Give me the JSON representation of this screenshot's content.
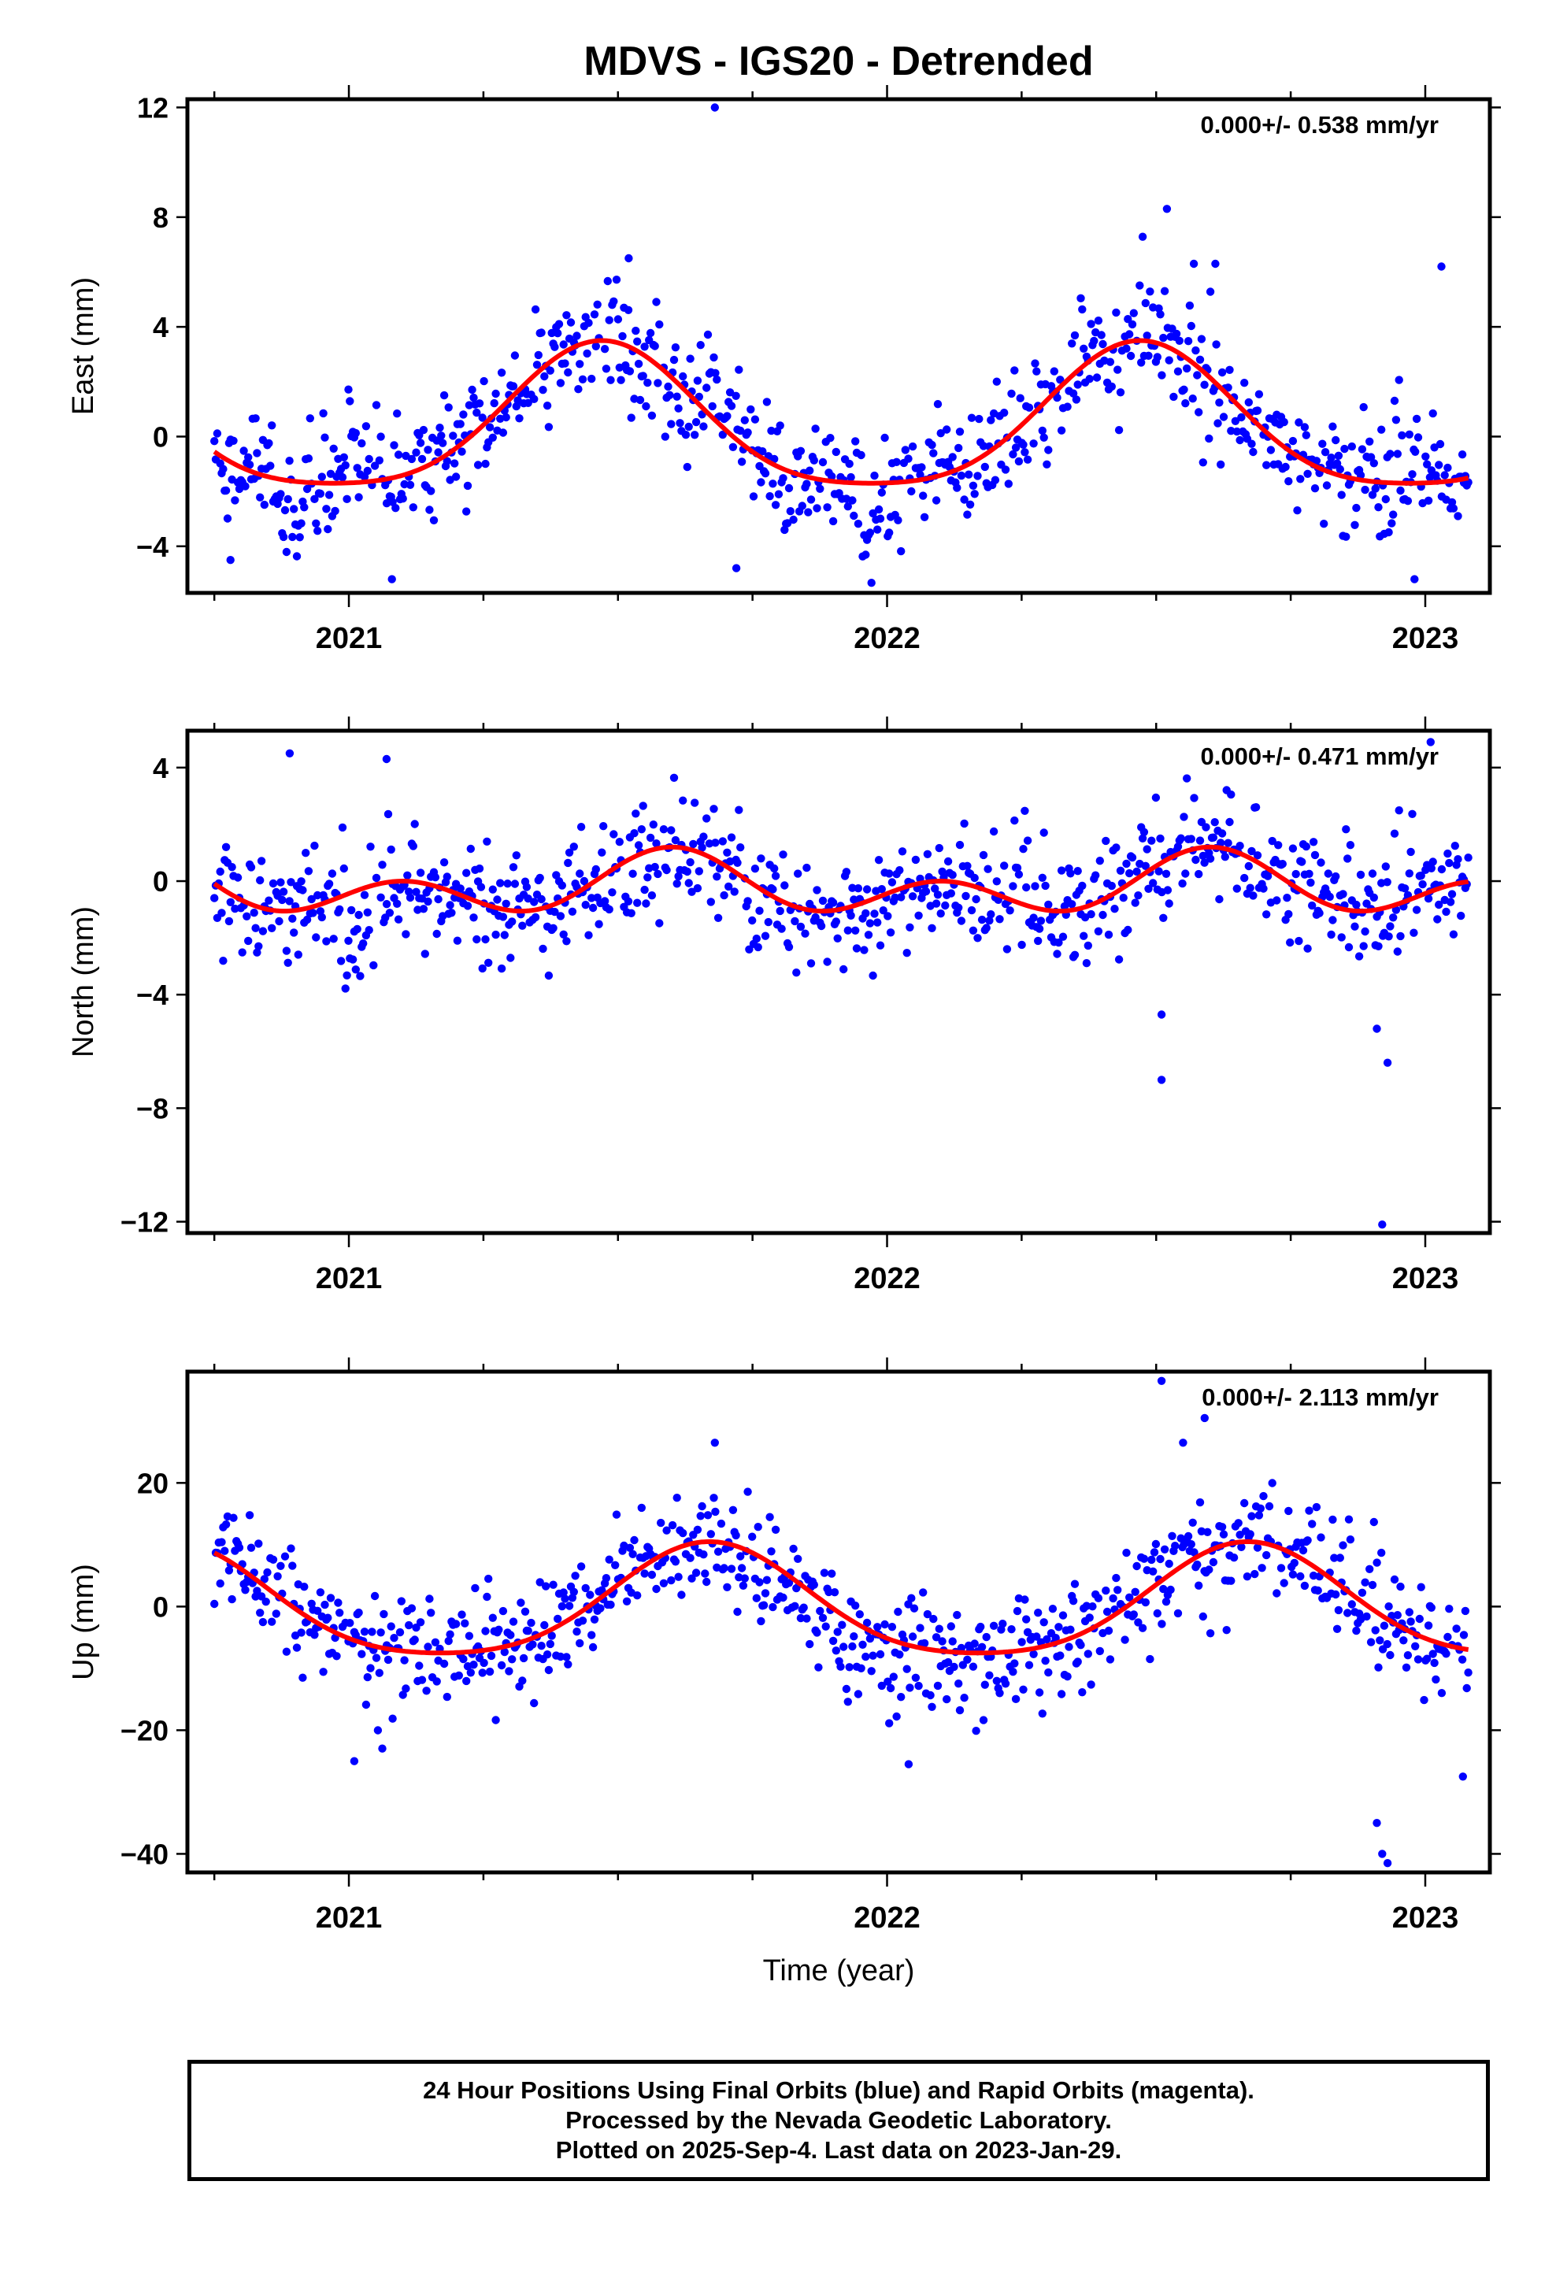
{
  "title": "MDVS - IGS20 - Detrended",
  "xlabel": "Time (year)",
  "x_ticks": [
    "2021",
    "2022",
    "2023"
  ],
  "colors": {
    "points": "#0000ff",
    "fit": "#ff0000",
    "frame": "#000000"
  },
  "caption": {
    "line1": "24 Hour Positions Using Final Orbits (blue) and Rapid Orbits (magenta).",
    "line2": "Processed by the Nevada Geodetic Laboratory.",
    "line3": "Plotted on 2025-Sep-4. Last data on 2023-Jan-29."
  },
  "chart_data": [
    {
      "type": "scatter",
      "component": "east",
      "ylabel": "East (mm)",
      "rate": "0.000+/- 0.538 mm/yr",
      "xlim": [
        2020.7,
        2023.12
      ],
      "ylim": [
        -5.7,
        12.3
      ],
      "yticks": [
        -4,
        0,
        4,
        8,
        12
      ],
      "fit": {
        "amp_annual": 2.6,
        "amp_semiannual": 0.5,
        "peak_annual": 0.47,
        "offset": 0.4
      },
      "scatter_sigma": 1.1,
      "series_points": [
        [
          2021.68,
          12.0
        ],
        [
          2022.52,
          8.3
        ],
        [
          2022.57,
          6.3
        ],
        [
          2022.61,
          6.3
        ],
        [
          2023.03,
          6.2
        ],
        [
          2021.52,
          6.5
        ],
        [
          2021.72,
          -4.8
        ],
        [
          2021.08,
          -5.2
        ],
        [
          2020.78,
          -4.5
        ],
        [
          2022.98,
          -5.2
        ]
      ]
    },
    {
      "type": "scatter",
      "component": "north",
      "ylabel": "North (mm)",
      "rate": "0.000+/- 0.471 mm/yr",
      "xlim": [
        2020.7,
        2023.12
      ],
      "ylim": [
        -12.4,
        5.3
      ],
      "yticks": [
        -12,
        -8,
        -4,
        0,
        4
      ],
      "fit": {
        "amp_annual": 0.6,
        "amp_semiannual": 0.8,
        "peak_annual": 0.6,
        "offset": -0.2
      },
      "scatter_sigma": 1.0,
      "series_points": [
        [
          2022.51,
          -7.0
        ],
        [
          2022.92,
          -12.1
        ],
        [
          2022.93,
          -6.4
        ],
        [
          2022.91,
          -5.2
        ],
        [
          2023.01,
          4.9
        ],
        [
          2020.89,
          4.5
        ],
        [
          2021.07,
          4.3
        ],
        [
          2022.51,
          -4.7
        ]
      ]
    },
    {
      "type": "scatter",
      "component": "up",
      "ylabel": "Up (mm)",
      "rate": "0.000+/- 2.113 mm/yr",
      "xlim": [
        2020.7,
        2023.12
      ],
      "ylim": [
        -43,
        38
      ],
      "yticks": [
        -40,
        -20,
        0,
        20
      ],
      "fit": {
        "amp_annual": 9.0,
        "amp_semiannual": 1.5,
        "peak_annual": 0.67,
        "offset": 0.0
      },
      "scatter_sigma": 4.5,
      "series_points": [
        [
          2022.51,
          36.5
        ],
        [
          2022.59,
          30.5
        ],
        [
          2022.55,
          26.5
        ],
        [
          2021.68,
          26.5
        ],
        [
          2022.92,
          -40.0
        ],
        [
          2022.93,
          -41.5
        ],
        [
          2022.91,
          -35.0
        ],
        [
          2023.07,
          -27.5
        ],
        [
          2021.01,
          -25.0
        ],
        [
          2022.04,
          -25.5
        ]
      ]
    }
  ]
}
